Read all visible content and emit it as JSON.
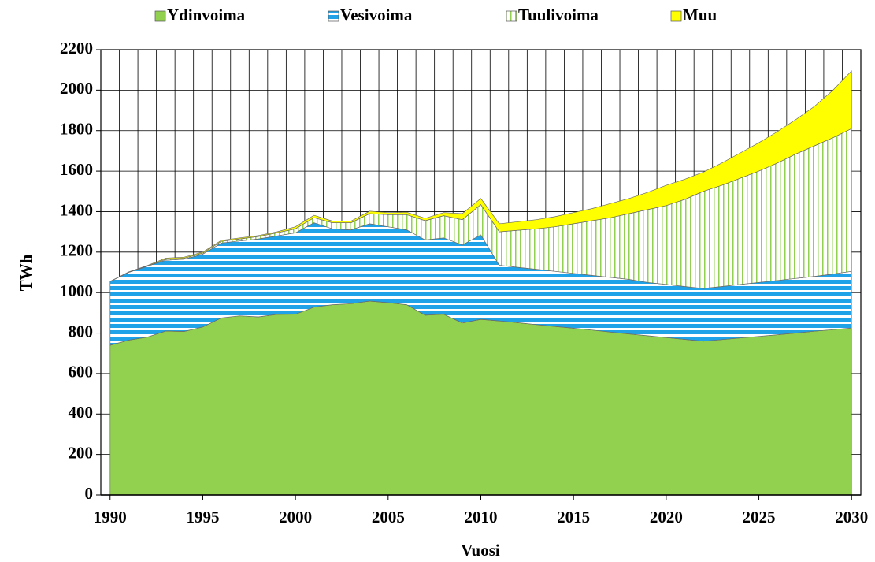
{
  "chart_data": {
    "type": "stacked_area",
    "ylabel": "TWh",
    "xlabel": "Vuosi",
    "x": [
      1990,
      1991,
      1992,
      1993,
      1994,
      1995,
      1996,
      1997,
      1998,
      1999,
      2000,
      2001,
      2002,
      2003,
      2004,
      2005,
      2006,
      2007,
      2008,
      2009,
      2010,
      2011,
      2012,
      2013,
      2014,
      2015,
      2016,
      2017,
      2018,
      2019,
      2020,
      2021,
      2022,
      2023,
      2024,
      2025,
      2026,
      2027,
      2028,
      2029,
      2030
    ],
    "xlim": [
      1989.5,
      2030.5
    ],
    "xticks": [
      1990,
      1995,
      2000,
      2005,
      2010,
      2015,
      2020,
      2025,
      2030
    ],
    "ylim": [
      0,
      2200
    ],
    "yticks": [
      0,
      200,
      400,
      600,
      800,
      1000,
      1200,
      1400,
      1600,
      1800,
      2000,
      2200
    ],
    "grid": true,
    "legend": "top",
    "series": [
      {
        "name": "Ydinvoima",
        "color": "#92d050",
        "hatch": "none",
        "values": [
          740,
          765,
          780,
          810,
          808,
          830,
          875,
          885,
          880,
          892,
          893,
          928,
          940,
          945,
          958,
          950,
          940,
          888,
          893,
          850,
          868,
          860,
          851,
          842,
          833,
          824,
          815,
          805,
          796,
          787,
          778,
          769,
          760,
          768,
          776,
          784,
          792,
          800,
          809,
          817,
          825
        ]
      },
      {
        "name": "Vesivoima",
        "color": "#1fa2e8",
        "hatch": "horizontal",
        "values": [
          315,
          335,
          350,
          350,
          357,
          360,
          370,
          370,
          385,
          388,
          402,
          417,
          375,
          365,
          382,
          375,
          370,
          372,
          377,
          385,
          417,
          275,
          274,
          273,
          272,
          271,
          270,
          270,
          269,
          263,
          262,
          261,
          260,
          262,
          264,
          266,
          268,
          270,
          271,
          275,
          280
        ]
      },
      {
        "name": "Tuulivoima",
        "color": "#92d050",
        "hatch": "vertical",
        "values": [
          0,
          0,
          0,
          5,
          5,
          5,
          8,
          10,
          12,
          15,
          20,
          25,
          30,
          35,
          50,
          60,
          75,
          95,
          110,
          125,
          150,
          165,
          183,
          200,
          220,
          245,
          270,
          295,
          325,
          360,
          390,
          430,
          480,
          500,
          525,
          550,
          580,
          615,
          645,
          673,
          705
        ]
      },
      {
        "name": "Muu",
        "color": "#ffff00",
        "hatch": "none",
        "values": [
          0,
          2,
          3,
          5,
          5,
          5,
          5,
          5,
          5,
          5,
          10,
          12,
          8,
          8,
          12,
          10,
          12,
          12,
          15,
          30,
          30,
          40,
          42,
          45,
          50,
          55,
          60,
          70,
          75,
          85,
          100,
          100,
          95,
          110,
          125,
          140,
          155,
          170,
          195,
          235,
          285
        ]
      }
    ]
  }
}
